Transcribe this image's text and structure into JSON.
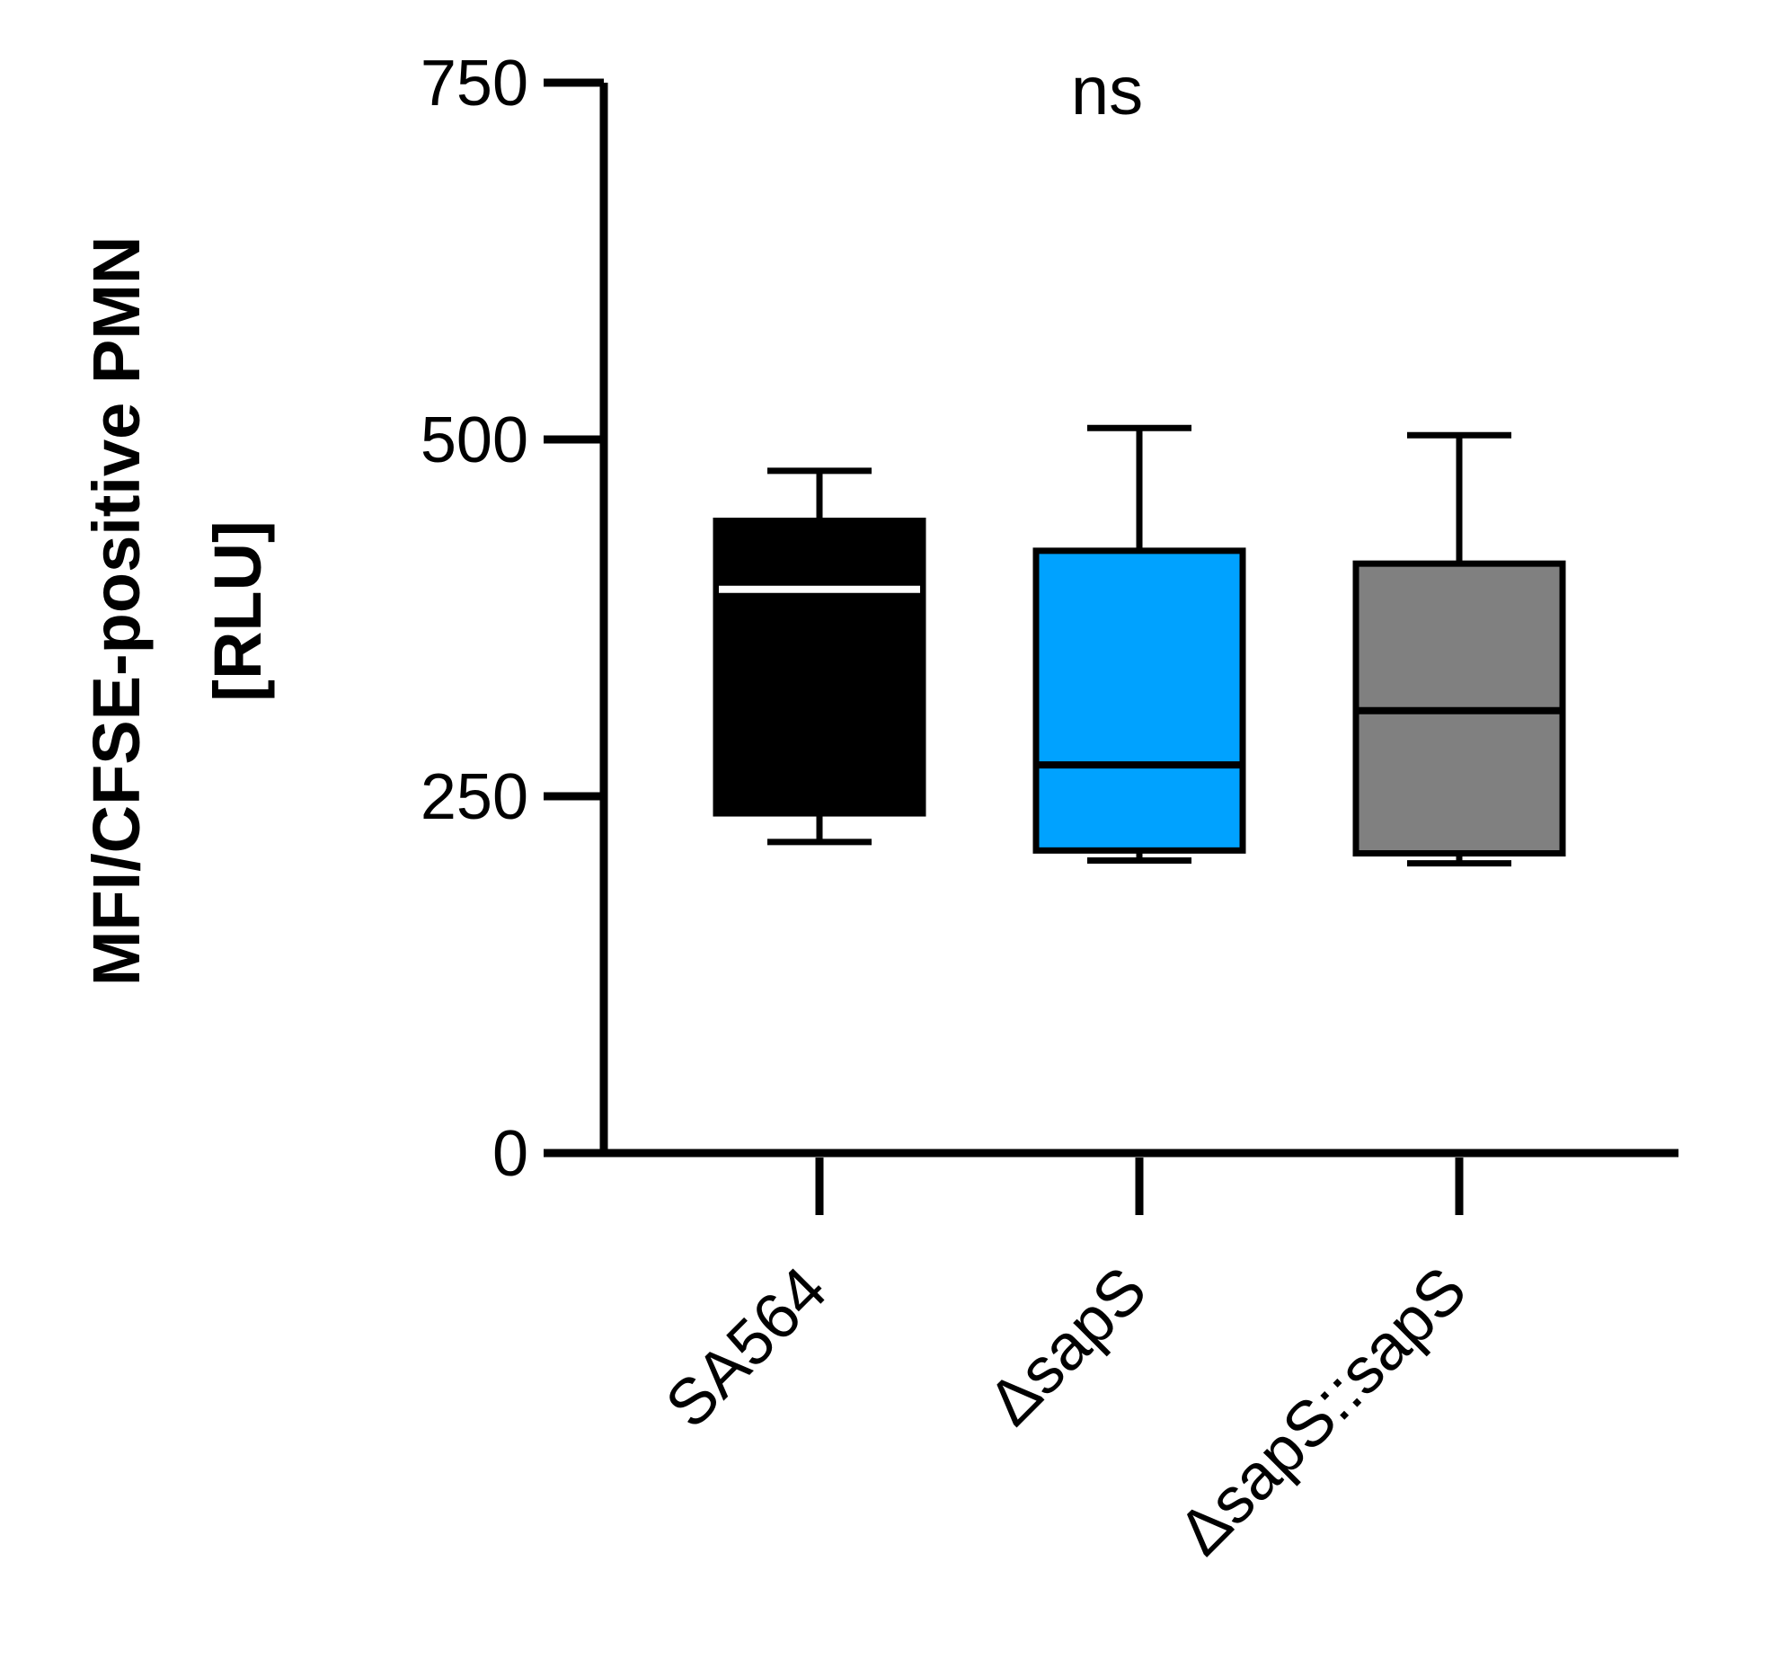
{
  "chart_data": {
    "type": "box",
    "ylabel_lines": [
      "MFI/CFSE-positive PMN",
      "[RLU]"
    ],
    "ylim": [
      0,
      750
    ],
    "yticks": [
      0,
      250,
      500,
      750
    ],
    "ytick_labels": [
      "0",
      "250",
      "500",
      "750"
    ],
    "annotation": "ns",
    "categories": [
      "SA564",
      "ΔsapS",
      "ΔsapS::sapS"
    ],
    "boxes": [
      {
        "name": "SA564",
        "whisker_low": 218,
        "q1": 238,
        "median": 395,
        "q3": 443,
        "whisker_high": 478,
        "fill": "#000000",
        "stroke": "#000000",
        "median_color": "#ffffff"
      },
      {
        "name": "ΔsapS",
        "whisker_low": 205,
        "q1": 212,
        "median": 272,
        "q3": 422,
        "whisker_high": 508,
        "fill": "#00a2ff",
        "stroke": "#000000",
        "median_color": "#000000"
      },
      {
        "name": "ΔsapS::sapS",
        "whisker_low": 203,
        "q1": 210,
        "median": 310,
        "q3": 413,
        "whisker_high": 503,
        "fill": "#808080",
        "stroke": "#000000",
        "median_color": "#000000"
      }
    ]
  }
}
